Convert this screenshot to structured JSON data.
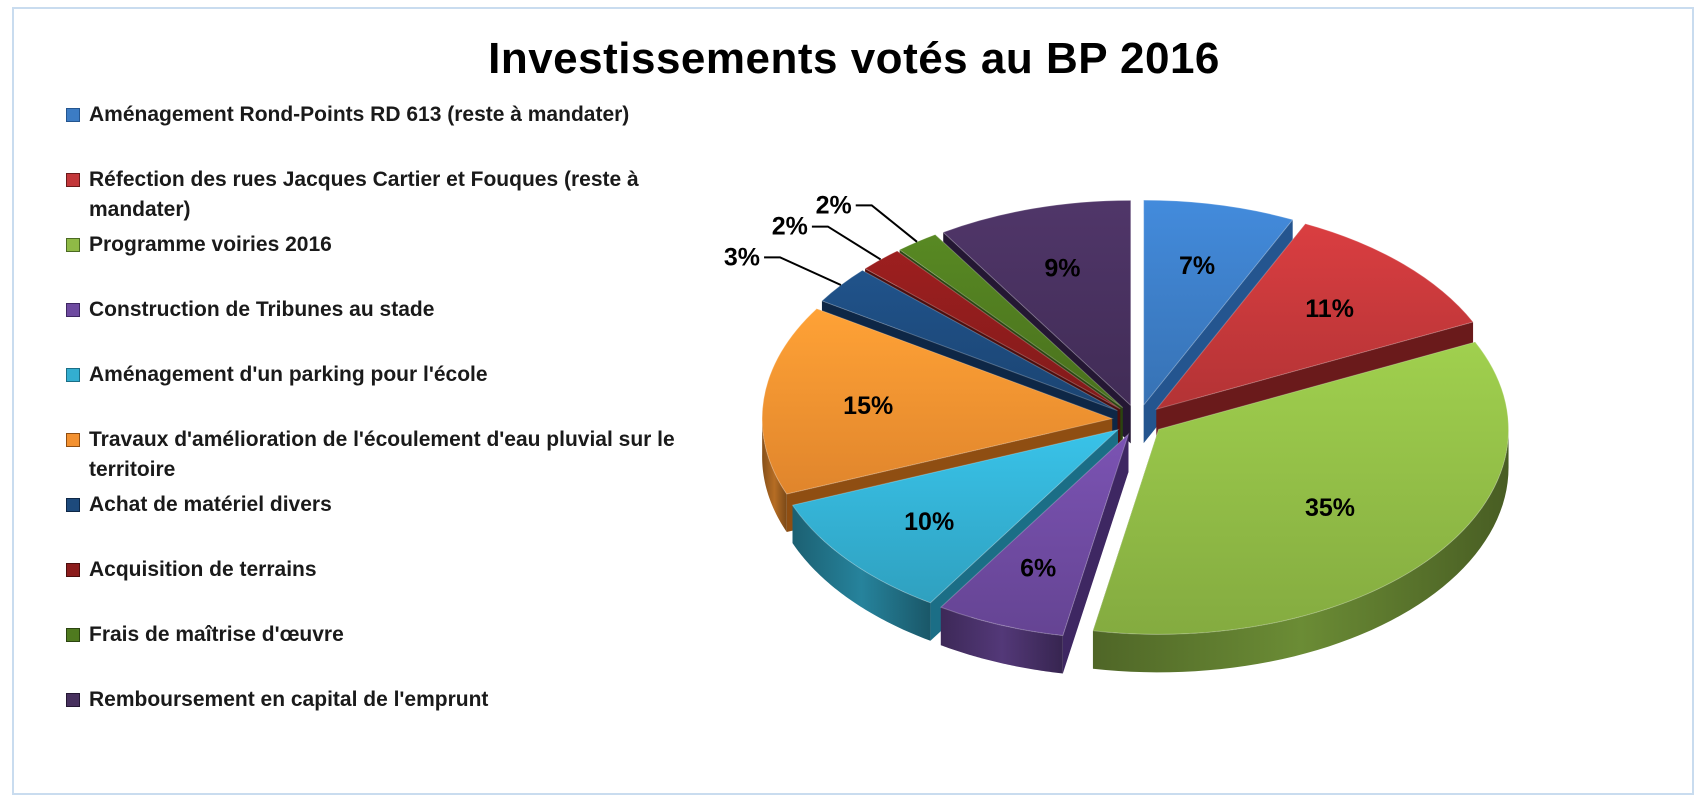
{
  "chart_data": {
    "type": "pie",
    "title": "Investissements votés au BP 2016",
    "legend_position": "left",
    "slices": [
      {
        "label": "Aménagement Rond-Points RD 613 (reste à mandater)",
        "value": 7,
        "value_label": "7%",
        "color": "#3c7cc4",
        "dark": "#24558f"
      },
      {
        "label": "Réfection des rues Jacques Cartier et Fouques (reste à mandater)",
        "value": 11,
        "value_label": "11%",
        "color": "#c3373a",
        "dark": "#6a1a1b"
      },
      {
        "label": "Programme voiries 2016",
        "value": 35,
        "value_label": "35%",
        "color": "#8fba46",
        "dark": "#4b6a23"
      },
      {
        "label": "Construction de Tribunes au stade",
        "value": 6,
        "value_label": "6%",
        "color": "#6e4aa0",
        "dark": "#3e2762"
      },
      {
        "label": "Aménagement d'un parking pour l'école",
        "value": 10,
        "value_label": "10%",
        "color": "#33aed0",
        "dark": "#1b6e86"
      },
      {
        "label": "Travaux d'amélioration de l'écoulement d'eau pluvial sur le territoire",
        "value": 15,
        "value_label": "15%",
        "color": "#f39130",
        "dark": "#8f4e12"
      },
      {
        "label": "Achat de matériel divers",
        "value": 3,
        "value_label": "3%",
        "color": "#1d4a7c",
        "dark": "#0e2746"
      },
      {
        "label": "Acquisition de terrains",
        "value": 2,
        "value_label": "2%",
        "color": "#8c1c1c",
        "dark": "#4c0e0e"
      },
      {
        "label": "Frais de maîtrise d'œuvre",
        "value": 2,
        "value_label": "2%",
        "color": "#4f7a1f",
        "dark": "#2b4410"
      },
      {
        "label": "Remboursement en capital de l'emprunt",
        "value": 9,
        "value_label": "9%",
        "color": "#47305e",
        "dark": "#241733"
      }
    ]
  }
}
